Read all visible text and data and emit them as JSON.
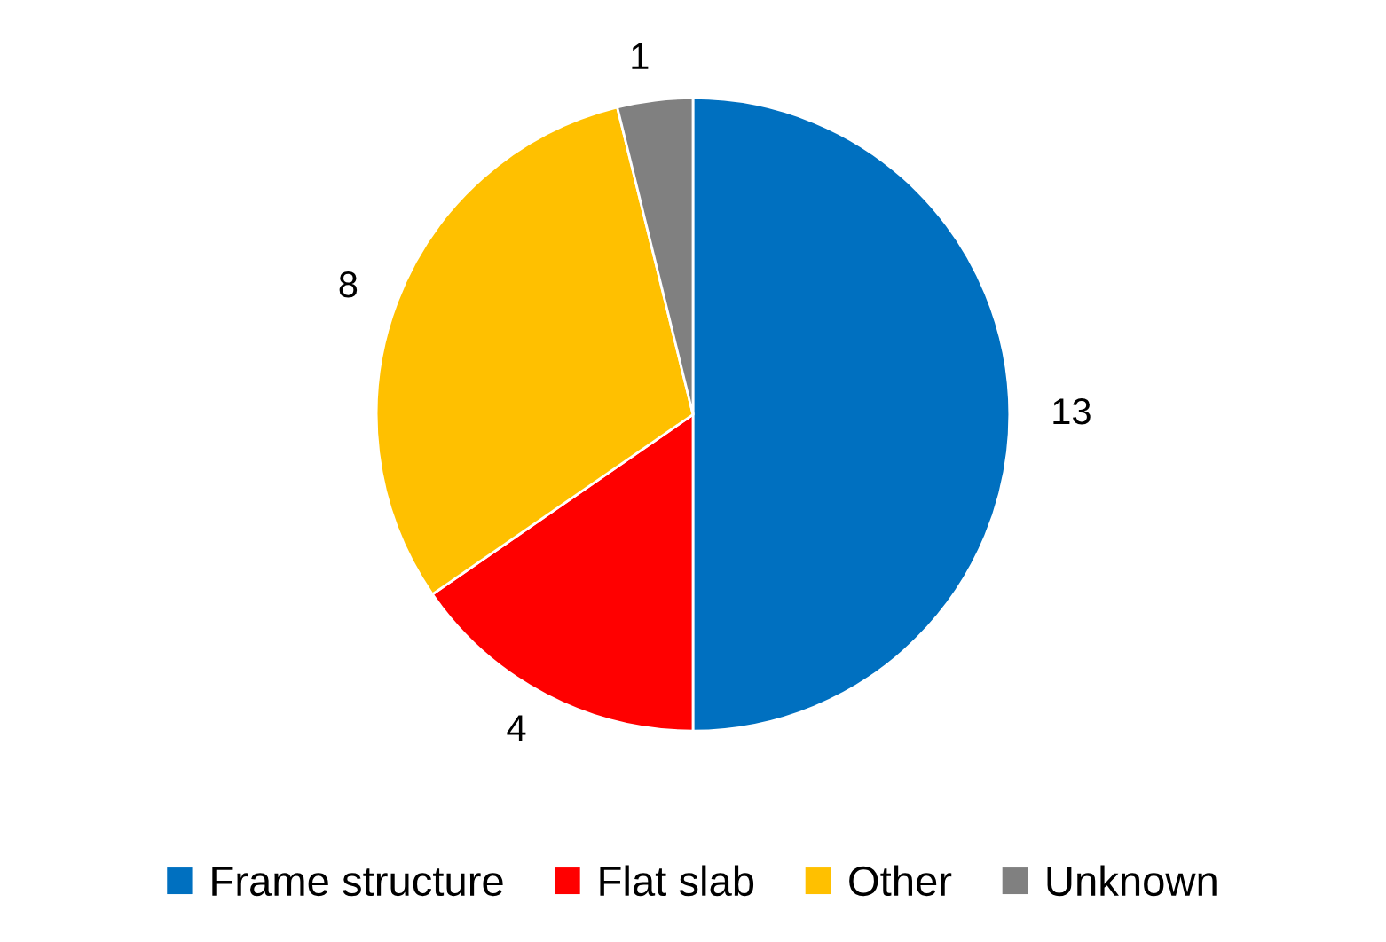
{
  "chart_data": {
    "type": "pie",
    "categories": [
      "Frame structure",
      "Flat slab",
      "Other",
      "Unknown"
    ],
    "values": [
      13,
      4,
      8,
      1
    ],
    "colors": [
      "#0070c0",
      "#ff0000",
      "#ffc000",
      "#808080"
    ],
    "data_labels": true,
    "legend": "bottom"
  }
}
